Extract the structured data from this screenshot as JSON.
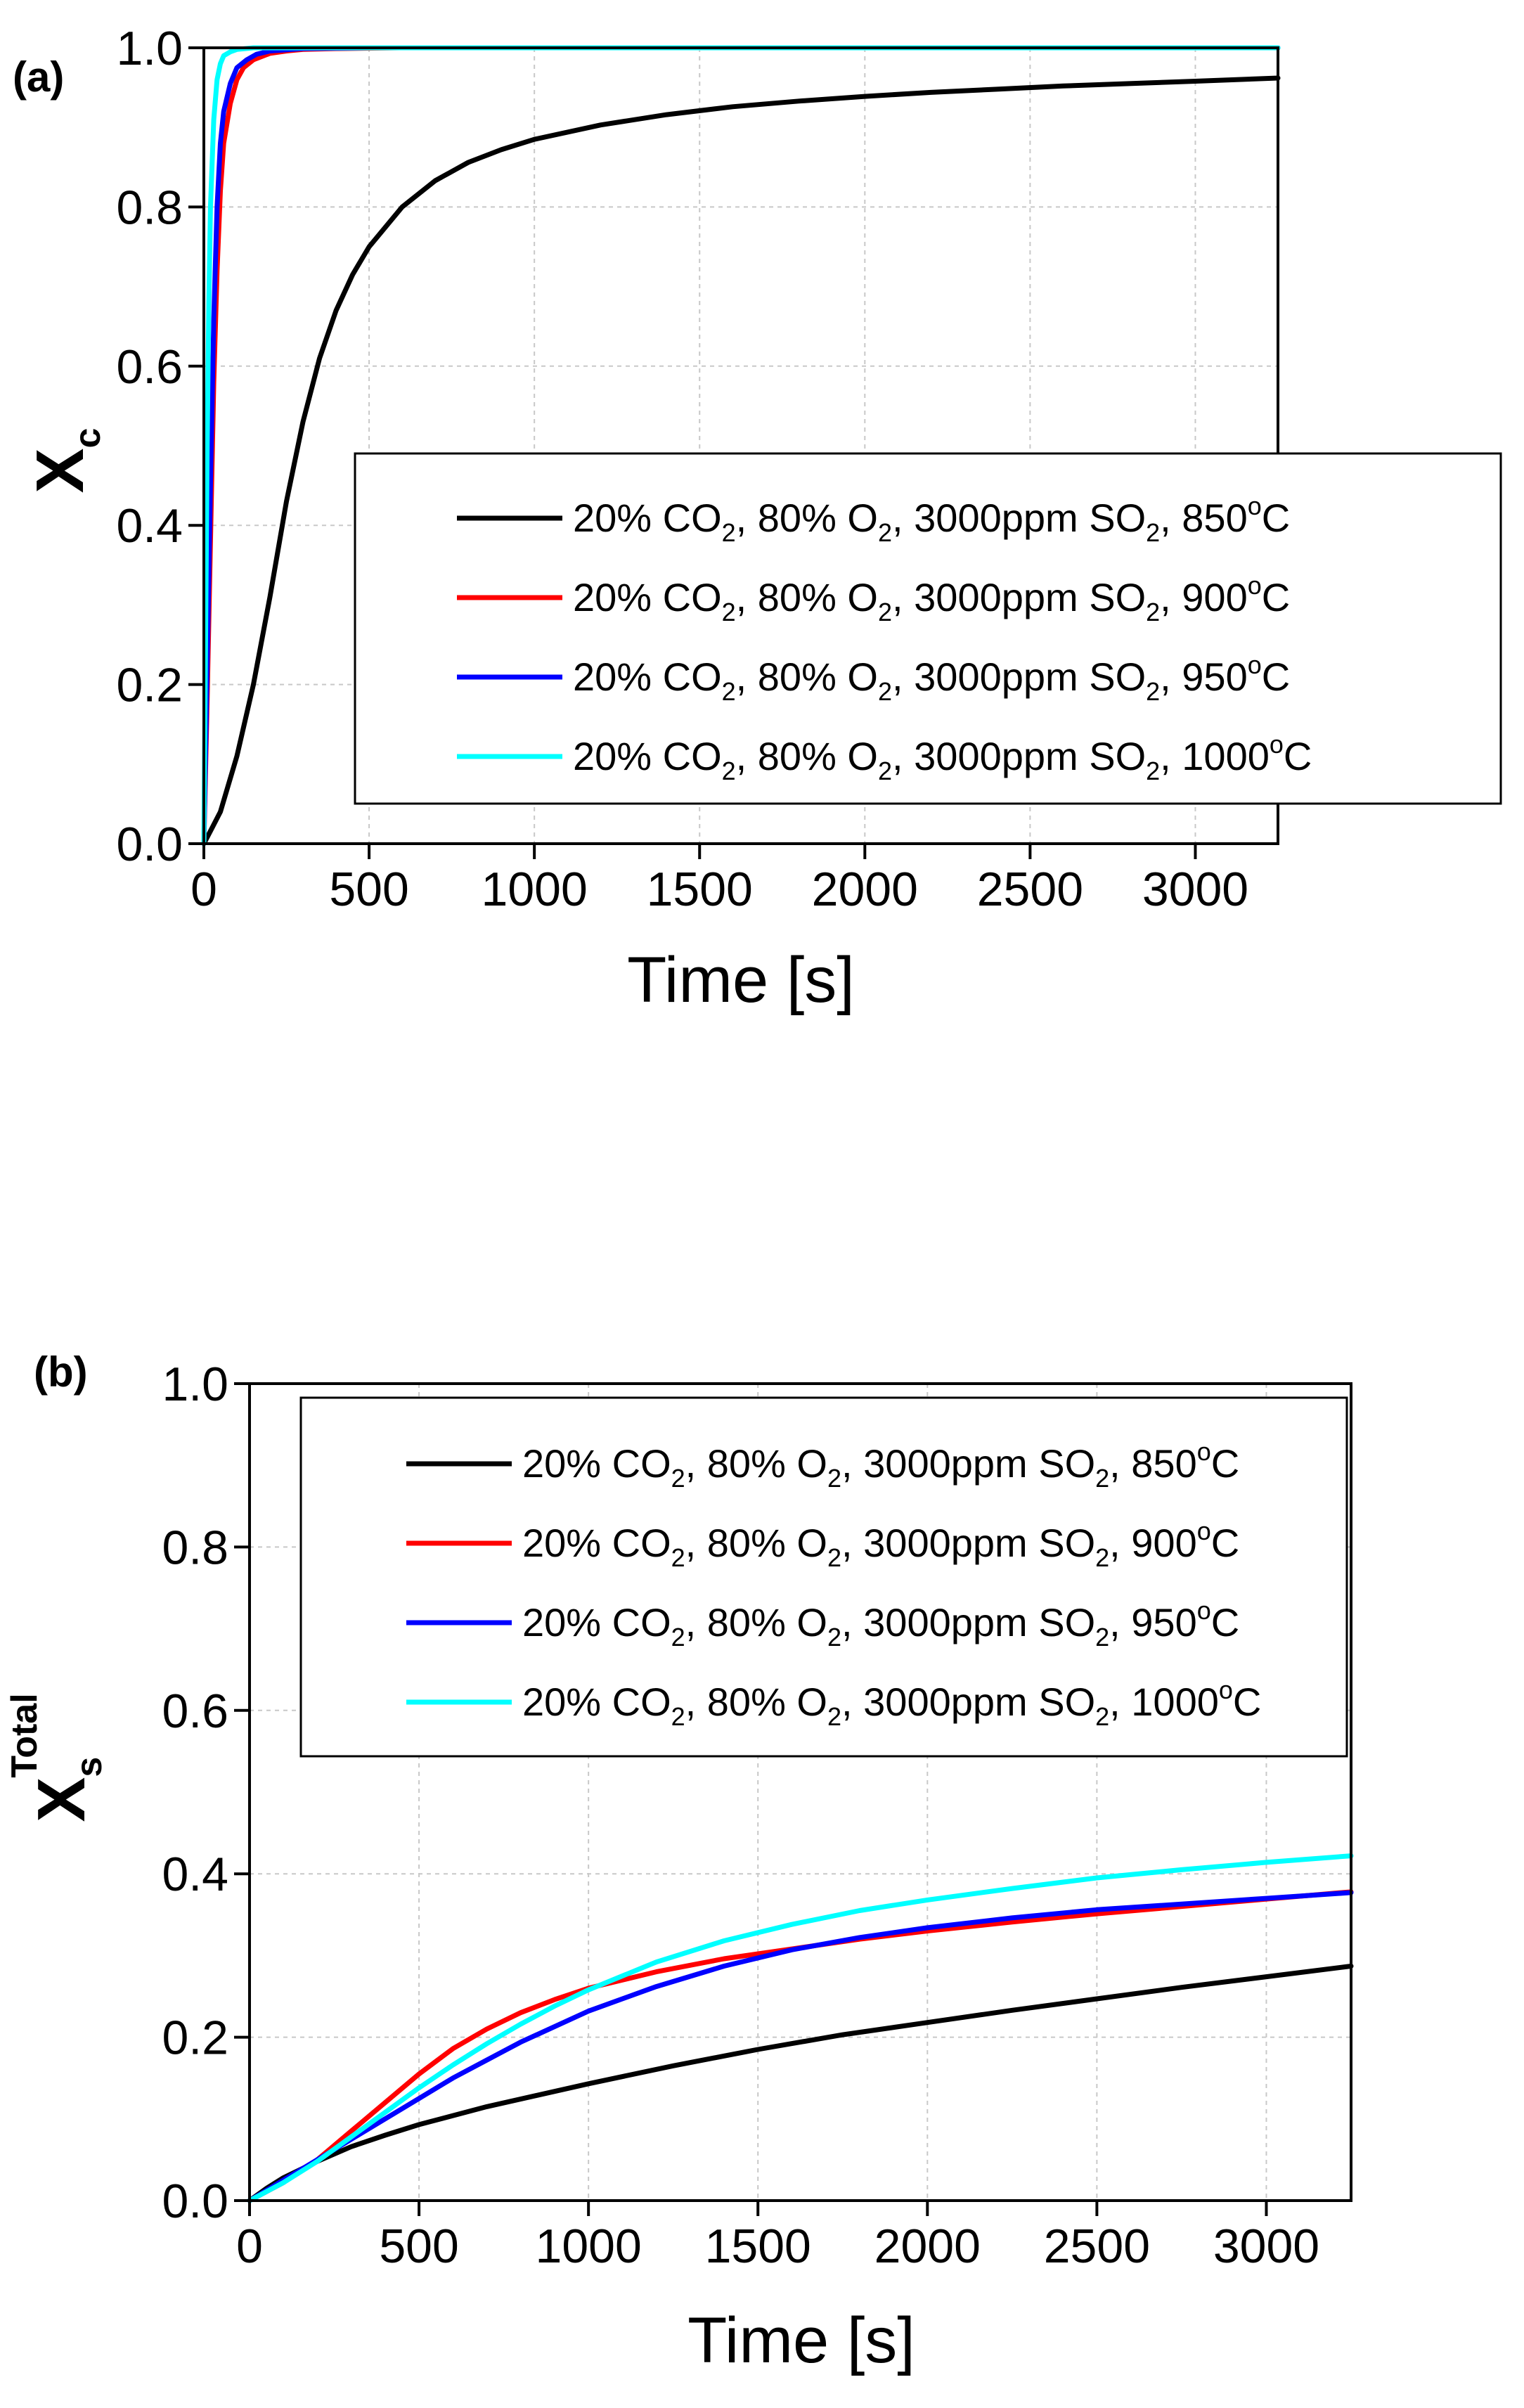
{
  "chart_data": [
    {
      "type": "line",
      "panel_label": "(a)",
      "xlabel": "Time [s]",
      "ylabel": {
        "main": "X",
        "sub": "c",
        "sup": ""
      },
      "xlim": [
        0,
        3250
      ],
      "ylim": [
        0,
        1.0
      ],
      "xticks": [
        0,
        500,
        1000,
        1500,
        2000,
        2500,
        3000
      ],
      "xtick_labels": [
        "0",
        "500",
        "1000",
        "1500",
        "2000",
        "2500",
        "3000"
      ],
      "yticks": [
        0,
        0.2,
        0.4,
        0.6,
        0.8,
        1.0
      ],
      "ytick_labels": [
        "0.0",
        "0.2",
        "0.4",
        "0.6",
        "0.8",
        "1.0"
      ],
      "grid": true,
      "legend_position": "center-right",
      "series": [
        {
          "name": "20% CO2, 80% O2, 3000ppm SO2, 850°C",
          "label_parts": [
            "20% CO",
            "2",
            ", 80% O",
            "2",
            ", 3000ppm SO",
            "2",
            ", 850",
            "o",
            "C"
          ],
          "color": "#000000",
          "x": [
            0,
            25,
            50,
            100,
            150,
            200,
            250,
            300,
            350,
            400,
            450,
            500,
            600,
            700,
            800,
            900,
            1000,
            1200,
            1400,
            1600,
            1800,
            2000,
            2200,
            2400,
            2600,
            2800,
            3000,
            3250
          ],
          "y": [
            0,
            0.02,
            0.04,
            0.11,
            0.2,
            0.31,
            0.43,
            0.53,
            0.61,
            0.67,
            0.715,
            0.75,
            0.8,
            0.833,
            0.856,
            0.872,
            0.885,
            0.903,
            0.916,
            0.926,
            0.933,
            0.939,
            0.944,
            0.948,
            0.952,
            0.955,
            0.958,
            0.962
          ]
        },
        {
          "name": "20% CO2, 80% O2, 3000ppm SO2, 900°C",
          "label_parts": [
            "20% CO",
            "2",
            ", 80% O",
            "2",
            ", 3000ppm SO",
            "2",
            ", 900",
            "o",
            "C"
          ],
          "color": "#ff0000",
          "x": [
            0,
            10,
            20,
            30,
            40,
            50,
            60,
            80,
            100,
            120,
            150,
            200,
            250,
            300,
            400,
            600,
            3250
          ],
          "y": [
            0,
            0.18,
            0.38,
            0.58,
            0.72,
            0.82,
            0.88,
            0.93,
            0.96,
            0.975,
            0.985,
            0.993,
            0.996,
            0.998,
            0.999,
            1.0,
            1.0
          ]
        },
        {
          "name": "20% CO2, 80% O2, 3000ppm SO2, 950°C",
          "label_parts": [
            "20% CO",
            "2",
            ", 80% O",
            "2",
            ", 3000ppm SO",
            "2",
            ", 950",
            "o",
            "C"
          ],
          "color": "#0000ff",
          "x": [
            0,
            10,
            20,
            30,
            40,
            50,
            60,
            80,
            100,
            130,
            160,
            200,
            300,
            500,
            3250
          ],
          "y": [
            0,
            0.22,
            0.45,
            0.66,
            0.8,
            0.88,
            0.92,
            0.955,
            0.975,
            0.985,
            0.992,
            0.996,
            0.999,
            1.0,
            1.0
          ]
        },
        {
          "name": "20% CO2, 80% O2, 3000ppm SO2, 1000°C",
          "label_parts": [
            "20% CO",
            "2",
            ", 80% O",
            "2",
            ", 3000ppm SO",
            "2",
            ", 1000",
            "o",
            "C"
          ],
          "color": "#00ffff",
          "x": [
            0,
            5,
            10,
            15,
            20,
            30,
            40,
            50,
            60,
            80,
            100,
            150,
            3250
          ],
          "y": [
            0,
            0.25,
            0.5,
            0.68,
            0.8,
            0.91,
            0.96,
            0.98,
            0.99,
            0.995,
            0.998,
            1.0,
            1.0
          ]
        }
      ]
    },
    {
      "type": "line",
      "panel_label": "(b)",
      "xlabel": "Time [s]",
      "ylabel": {
        "main": "X",
        "sub": "s",
        "sup": "Total"
      },
      "xlim": [
        0,
        3250
      ],
      "ylim": [
        0,
        1.0
      ],
      "xticks": [
        0,
        500,
        1000,
        1500,
        2000,
        2500,
        3000
      ],
      "xtick_labels": [
        "0",
        "500",
        "1000",
        "1500",
        "2000",
        "2500",
        "3000"
      ],
      "yticks": [
        0,
        0.2,
        0.4,
        0.6,
        0.8,
        1.0
      ],
      "ytick_labels": [
        "0.0",
        "0.2",
        "0.4",
        "0.6",
        "0.8",
        "1.0"
      ],
      "grid": true,
      "legend_position": "top-right",
      "series": [
        {
          "name": "20% CO2, 80% O2, 3000ppm SO2, 850°C",
          "label_parts": [
            "20% CO",
            "2",
            ", 80% O",
            "2",
            ", 3000ppm SO",
            "2",
            ", 850",
            "o",
            "C"
          ],
          "color": "#000000",
          "x": [
            0,
            50,
            100,
            200,
            300,
            400,
            500,
            700,
            1000,
            1250,
            1500,
            1750,
            2000,
            2250,
            2500,
            2750,
            3000,
            3250
          ],
          "y": [
            0,
            0.015,
            0.028,
            0.048,
            0.066,
            0.08,
            0.093,
            0.115,
            0.143,
            0.165,
            0.185,
            0.203,
            0.218,
            0.233,
            0.247,
            0.261,
            0.274,
            0.287
          ]
        },
        {
          "name": "20% CO2, 80% O2, 3000ppm SO2, 900°C",
          "label_parts": [
            "20% CO",
            "2",
            ", 80% O",
            "2",
            ", 3000ppm SO",
            "2",
            ", 900",
            "o",
            "C"
          ],
          "color": "#ff0000",
          "x": [
            0,
            100,
            200,
            300,
            400,
            500,
            600,
            700,
            800,
            900,
            1000,
            1200,
            1400,
            1600,
            1800,
            2000,
            2250,
            2500,
            2750,
            3000,
            3250
          ],
          "y": [
            0,
            0.022,
            0.05,
            0.085,
            0.12,
            0.155,
            0.186,
            0.21,
            0.23,
            0.246,
            0.26,
            0.28,
            0.296,
            0.308,
            0.32,
            0.33,
            0.341,
            0.351,
            0.36,
            0.369,
            0.378
          ]
        },
        {
          "name": "20% CO2, 80% O2, 3000ppm SO2, 950°C",
          "label_parts": [
            "20% CO",
            "2",
            ", 80% O",
            "2",
            ", 3000ppm SO",
            "2",
            ", 950",
            "o",
            "C"
          ],
          "color": "#0000ff",
          "x": [
            0,
            100,
            200,
            300,
            400,
            500,
            600,
            700,
            800,
            1000,
            1200,
            1400,
            1600,
            1800,
            2000,
            2250,
            2500,
            2750,
            3000,
            3250
          ],
          "y": [
            0,
            0.025,
            0.05,
            0.075,
            0.1,
            0.125,
            0.15,
            0.172,
            0.194,
            0.232,
            0.262,
            0.287,
            0.307,
            0.322,
            0.334,
            0.346,
            0.356,
            0.363,
            0.37,
            0.377
          ]
        },
        {
          "name": "20% CO2, 80% O2, 3000ppm SO2, 1000°C",
          "label_parts": [
            "20% CO",
            "2",
            ", 80% O",
            "2",
            ", 3000ppm SO",
            "2",
            ", 1000",
            "o",
            "C"
          ],
          "color": "#00ffff",
          "x": [
            0,
            100,
            200,
            300,
            400,
            500,
            600,
            700,
            800,
            900,
            1000,
            1200,
            1400,
            1600,
            1800,
            2000,
            2250,
            2500,
            2750,
            3000,
            3250
          ],
          "y": [
            0,
            0.022,
            0.048,
            0.078,
            0.108,
            0.138,
            0.166,
            0.192,
            0.216,
            0.238,
            0.258,
            0.292,
            0.318,
            0.338,
            0.355,
            0.368,
            0.382,
            0.395,
            0.405,
            0.414,
            0.422
          ]
        }
      ]
    }
  ]
}
